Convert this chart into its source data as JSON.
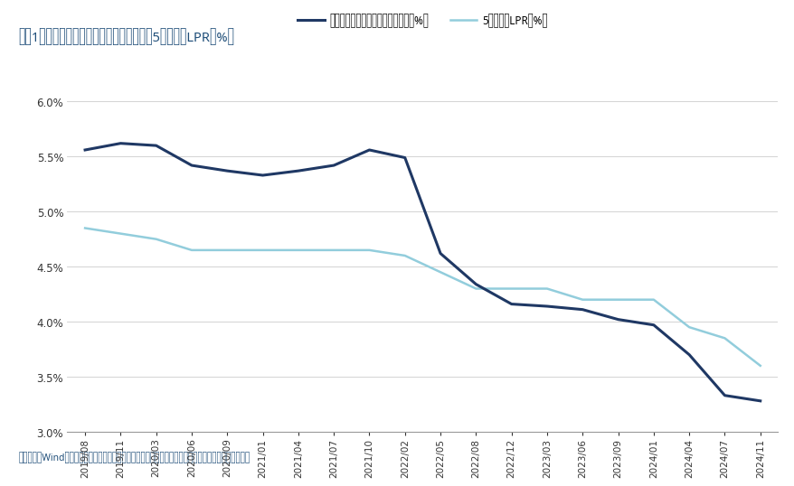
{
  "title": "图表1：新发放个人住房贷款加权平均利率与5年期以上LPR（%）",
  "source_text": "资料来源：Wind，央行，国盛证券研究所（个人住房贷款加权平均利率来自央行季度货币政策执行报告）",
  "legend1": "新发放个人住房贷款加权平均利率（%）",
  "legend2": "5年期以上LPR（%）",
  "title_color": "#1F4E79",
  "title_bg_color": "#D6E4F0",
  "source_bg_color": "#BDD7EE",
  "line1_color": "#1F3864",
  "line2_color": "#92CDDC",
  "bg_color": "#FFFFFF",
  "plot_bg_color": "#FFFFFF",
  "ylim": [
    3.0,
    6.3
  ],
  "yticks": [
    3.0,
    3.5,
    4.0,
    4.5,
    5.0,
    5.5,
    6.0
  ],
  "dates": [
    "2019/08",
    "2019/11",
    "2020/03",
    "2020/06",
    "2020/09",
    "2021/01",
    "2021/04",
    "2021/07",
    "2021/10",
    "2022/02",
    "2022/05",
    "2022/08",
    "2022/12",
    "2023/03",
    "2023/06",
    "2023/09",
    "2024/01",
    "2024/04",
    "2024/07",
    "2024/11"
  ],
  "line1_values": [
    5.56,
    5.62,
    5.6,
    5.42,
    5.37,
    5.33,
    5.37,
    5.42,
    5.56,
    5.49,
    4.62,
    4.34,
    4.16,
    4.14,
    4.11,
    4.02,
    3.97,
    3.7,
    3.33,
    3.28
  ],
  "line2_values": [
    4.85,
    4.8,
    4.75,
    4.65,
    4.65,
    4.65,
    4.65,
    4.65,
    4.65,
    4.6,
    4.45,
    4.3,
    4.3,
    4.3,
    4.2,
    4.2,
    4.2,
    3.95,
    3.85,
    3.6
  ]
}
